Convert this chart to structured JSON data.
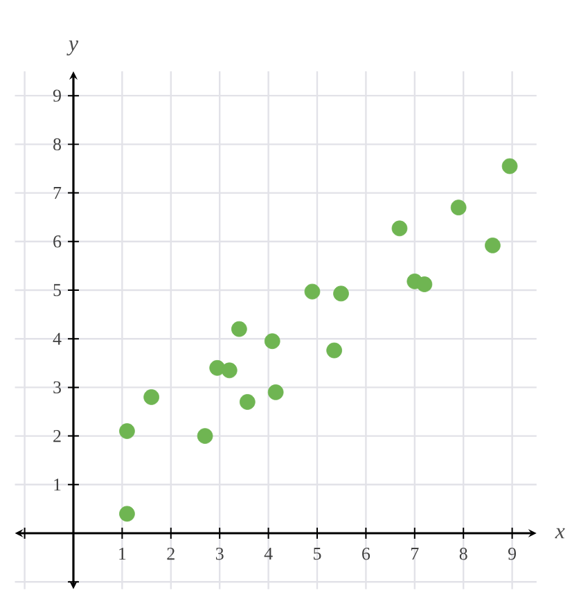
{
  "chart_data": {
    "type": "scatter",
    "xlabel": "x",
    "ylabel": "y",
    "x": [
      1.1,
      1.1,
      1.6,
      2.7,
      2.95,
      3.2,
      3.4,
      3.57,
      4.08,
      4.15,
      4.9,
      5.49,
      5.35,
      6.69,
      7.0,
      7.2,
      7.9,
      8.6,
      8.95
    ],
    "values": [
      0.4,
      2.1,
      2.8,
      2.0,
      3.4,
      3.35,
      4.2,
      2.7,
      3.95,
      2.9,
      4.97,
      4.93,
      3.76,
      6.27,
      5.18,
      5.12,
      6.7,
      5.92,
      7.55
    ],
    "color": "#6fb552",
    "marker": "circle",
    "grid": true,
    "xlim": [
      -1.2,
      9.5
    ],
    "ylim": [
      -1.15,
      9.5
    ],
    "xticks": [
      {
        "value": -1,
        "label": null
      },
      1,
      2,
      3,
      4,
      5,
      6,
      7,
      8,
      9
    ],
    "yticks": [
      {
        "value": -1,
        "label": null
      },
      1,
      2,
      3,
      4,
      5,
      6,
      7,
      8,
      9
    ]
  }
}
